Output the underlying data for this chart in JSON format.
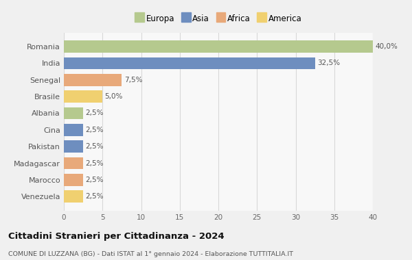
{
  "countries": [
    "Romania",
    "India",
    "Senegal",
    "Brasile",
    "Albania",
    "Cina",
    "Pakistan",
    "Madagascar",
    "Marocco",
    "Venezuela"
  ],
  "values": [
    40.0,
    32.5,
    7.5,
    5.0,
    2.5,
    2.5,
    2.5,
    2.5,
    2.5,
    2.5
  ],
  "colors": [
    "#b5c98e",
    "#6e8ebf",
    "#e8a97a",
    "#f0d070",
    "#b5c98e",
    "#6e8ebf",
    "#6e8ebf",
    "#e8a97a",
    "#e8a97a",
    "#f0d070"
  ],
  "labels": [
    "40,0%",
    "32,5%",
    "7,5%",
    "5,0%",
    "2,5%",
    "2,5%",
    "2,5%",
    "2,5%",
    "2,5%",
    "2,5%"
  ],
  "legend_labels": [
    "Europa",
    "Asia",
    "Africa",
    "America"
  ],
  "legend_colors": [
    "#b5c98e",
    "#6e8ebf",
    "#e8a97a",
    "#f0d070"
  ],
  "title": "Cittadini Stranieri per Cittadinanza - 2024",
  "subtitle": "COMUNE DI LUZZANA (BG) - Dati ISTAT al 1° gennaio 2024 - Elaborazione TUTTITALIA.IT",
  "xlim": [
    0,
    40
  ],
  "xticks": [
    0,
    5,
    10,
    15,
    20,
    25,
    30,
    35,
    40
  ],
  "background_color": "#f0f0f0",
  "bar_background": "#f8f8f8",
  "grid_color": "#d8d8d8",
  "bar_height": 0.72
}
